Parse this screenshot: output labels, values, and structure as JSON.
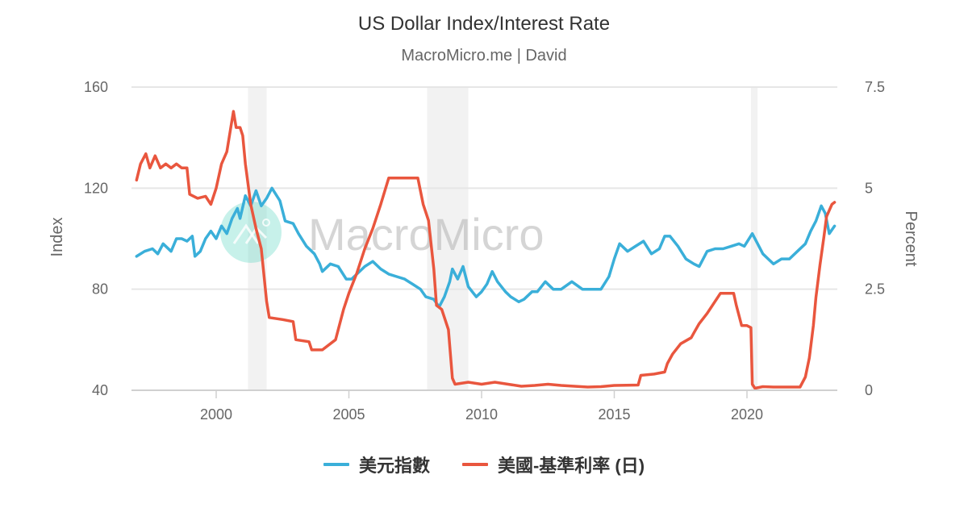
{
  "header": {
    "title": "US Dollar Index/Interest Rate",
    "subtitle": "MacroMicro.me | David"
  },
  "watermark": {
    "text": "MacroMicro",
    "logo_color": "#5fd8c4"
  },
  "legend": {
    "items": [
      {
        "label": "美元指數",
        "color": "#3aafd9"
      },
      {
        "label": "美國-基準利率 (日)",
        "color": "#e9563e"
      }
    ]
  },
  "chart_data": {
    "type": "line",
    "title": "US Dollar Index/Interest Rate",
    "subtitle": "MacroMicro.me | David",
    "xlabel": "",
    "x_ticks": [
      "2000",
      "2005",
      "2010",
      "2015",
      "2020"
    ],
    "xlim": [
      1996.8,
      2023.3
    ],
    "left_axis": {
      "label": "Index",
      "ticks": [
        "160",
        "120",
        "80",
        "40"
      ],
      "ylim": [
        40,
        160
      ]
    },
    "right_axis": {
      "label": "Percent",
      "ticks": [
        "7.5",
        "5",
        "2.5",
        "0"
      ],
      "ylim": [
        0,
        7.5
      ]
    },
    "grid": true,
    "legend_position": "bottom",
    "recession_bands": [
      [
        2001.2,
        2001.9
      ],
      [
        2007.95,
        2009.5
      ],
      [
        2020.15,
        2020.4
      ]
    ],
    "series": [
      {
        "name": "美元指數",
        "axis": "left",
        "color": "#3aafd9",
        "points": [
          [
            1997.0,
            93
          ],
          [
            1997.3,
            95
          ],
          [
            1997.6,
            96
          ],
          [
            1997.8,
            94
          ],
          [
            1998.0,
            98
          ],
          [
            1998.3,
            95
          ],
          [
            1998.5,
            100
          ],
          [
            1998.7,
            100
          ],
          [
            1998.9,
            99
          ],
          [
            1999.1,
            101
          ],
          [
            1999.2,
            93
          ],
          [
            1999.4,
            95
          ],
          [
            1999.6,
            100
          ],
          [
            1999.8,
            103
          ],
          [
            2000.0,
            100
          ],
          [
            2000.2,
            105
          ],
          [
            2000.4,
            102
          ],
          [
            2000.6,
            108
          ],
          [
            2000.8,
            112
          ],
          [
            2000.9,
            108
          ],
          [
            2001.1,
            117
          ],
          [
            2001.3,
            113
          ],
          [
            2001.5,
            119
          ],
          [
            2001.7,
            113
          ],
          [
            2001.9,
            116
          ],
          [
            2002.1,
            120
          ],
          [
            2002.4,
            115
          ],
          [
            2002.6,
            107
          ],
          [
            2002.9,
            106
          ],
          [
            2003.1,
            102
          ],
          [
            2003.4,
            97
          ],
          [
            2003.7,
            94
          ],
          [
            2003.9,
            90
          ],
          [
            2004.0,
            87
          ],
          [
            2004.3,
            90
          ],
          [
            2004.6,
            89
          ],
          [
            2004.9,
            84
          ],
          [
            2005.1,
            84
          ],
          [
            2005.3,
            86
          ],
          [
            2005.6,
            89
          ],
          [
            2005.9,
            91
          ],
          [
            2006.2,
            88
          ],
          [
            2006.5,
            86
          ],
          [
            2006.8,
            85
          ],
          [
            2007.1,
            84
          ],
          [
            2007.4,
            82
          ],
          [
            2007.7,
            80
          ],
          [
            2007.9,
            77
          ],
          [
            2008.2,
            76
          ],
          [
            2008.4,
            73
          ],
          [
            2008.6,
            77
          ],
          [
            2008.8,
            83
          ],
          [
            2008.9,
            88
          ],
          [
            2009.1,
            84
          ],
          [
            2009.3,
            89
          ],
          [
            2009.5,
            81
          ],
          [
            2009.8,
            77
          ],
          [
            2010.0,
            79
          ],
          [
            2010.2,
            82
          ],
          [
            2010.4,
            87
          ],
          [
            2010.6,
            83
          ],
          [
            2010.9,
            79
          ],
          [
            2011.1,
            77
          ],
          [
            2011.4,
            75
          ],
          [
            2011.6,
            76
          ],
          [
            2011.9,
            79
          ],
          [
            2012.1,
            79
          ],
          [
            2012.4,
            83
          ],
          [
            2012.7,
            80
          ],
          [
            2013.0,
            80
          ],
          [
            2013.4,
            83
          ],
          [
            2013.8,
            80
          ],
          [
            2014.2,
            80
          ],
          [
            2014.5,
            80
          ],
          [
            2014.8,
            85
          ],
          [
            2015.0,
            92
          ],
          [
            2015.2,
            98
          ],
          [
            2015.5,
            95
          ],
          [
            2015.8,
            97
          ],
          [
            2016.1,
            99
          ],
          [
            2016.4,
            94
          ],
          [
            2016.7,
            96
          ],
          [
            2016.9,
            101
          ],
          [
            2017.1,
            101
          ],
          [
            2017.4,
            97
          ],
          [
            2017.7,
            92
          ],
          [
            2018.0,
            90
          ],
          [
            2018.2,
            89
          ],
          [
            2018.5,
            95
          ],
          [
            2018.8,
            96
          ],
          [
            2019.1,
            96
          ],
          [
            2019.4,
            97
          ],
          [
            2019.7,
            98
          ],
          [
            2019.9,
            97
          ],
          [
            2020.2,
            102
          ],
          [
            2020.4,
            98
          ],
          [
            2020.6,
            94
          ],
          [
            2020.8,
            92
          ],
          [
            2021.0,
            90
          ],
          [
            2021.3,
            92
          ],
          [
            2021.6,
            92
          ],
          [
            2021.9,
            95
          ],
          [
            2022.2,
            98
          ],
          [
            2022.4,
            103
          ],
          [
            2022.6,
            107
          ],
          [
            2022.8,
            113
          ],
          [
            2022.95,
            110
          ],
          [
            2023.1,
            102
          ],
          [
            2023.3,
            105
          ]
        ]
      },
      {
        "name": "美國-基準利率 (日)",
        "axis": "right",
        "color": "#e9563e",
        "points": [
          [
            1997.0,
            5.2
          ],
          [
            1997.15,
            5.6
          ],
          [
            1997.35,
            5.85
          ],
          [
            1997.5,
            5.5
          ],
          [
            1997.7,
            5.8
          ],
          [
            1997.9,
            5.5
          ],
          [
            1998.1,
            5.6
          ],
          [
            1998.3,
            5.5
          ],
          [
            1998.5,
            5.6
          ],
          [
            1998.7,
            5.5
          ],
          [
            1998.9,
            5.5
          ],
          [
            1999.0,
            4.85
          ],
          [
            1999.3,
            4.75
          ],
          [
            1999.6,
            4.8
          ],
          [
            1999.8,
            4.6
          ],
          [
            2000.0,
            5.0
          ],
          [
            2000.2,
            5.6
          ],
          [
            2000.4,
            5.9
          ],
          [
            2000.55,
            6.5
          ],
          [
            2000.65,
            6.9
          ],
          [
            2000.75,
            6.5
          ],
          [
            2000.9,
            6.5
          ],
          [
            2001.0,
            6.3
          ],
          [
            2001.1,
            5.6
          ],
          [
            2001.3,
            4.6
          ],
          [
            2001.5,
            4.0
          ],
          [
            2001.7,
            3.5
          ],
          [
            2001.9,
            2.2
          ],
          [
            2002.0,
            1.8
          ],
          [
            2002.5,
            1.75
          ],
          [
            2002.9,
            1.7
          ],
          [
            2003.0,
            1.25
          ],
          [
            2003.5,
            1.2
          ],
          [
            2003.6,
            1.0
          ],
          [
            2004.0,
            1.0
          ],
          [
            2004.5,
            1.25
          ],
          [
            2004.8,
            2.0
          ],
          [
            2005.0,
            2.4
          ],
          [
            2005.3,
            2.9
          ],
          [
            2005.6,
            3.5
          ],
          [
            2005.9,
            4.0
          ],
          [
            2006.2,
            4.6
          ],
          [
            2006.5,
            5.25
          ],
          [
            2007.0,
            5.25
          ],
          [
            2007.6,
            5.25
          ],
          [
            2007.8,
            4.6
          ],
          [
            2008.0,
            4.2
          ],
          [
            2008.2,
            3.0
          ],
          [
            2008.3,
            2.1
          ],
          [
            2008.5,
            2.0
          ],
          [
            2008.75,
            1.5
          ],
          [
            2008.9,
            0.3
          ],
          [
            2009.0,
            0.15
          ],
          [
            2009.5,
            0.2
          ],
          [
            2010.0,
            0.15
          ],
          [
            2010.5,
            0.2
          ],
          [
            2011.0,
            0.15
          ],
          [
            2011.5,
            0.1
          ],
          [
            2012.0,
            0.12
          ],
          [
            2012.5,
            0.15
          ],
          [
            2013.0,
            0.12
          ],
          [
            2013.5,
            0.1
          ],
          [
            2014.0,
            0.08
          ],
          [
            2014.5,
            0.09
          ],
          [
            2015.0,
            0.12
          ],
          [
            2015.9,
            0.13
          ],
          [
            2016.0,
            0.37
          ],
          [
            2016.5,
            0.4
          ],
          [
            2016.9,
            0.45
          ],
          [
            2017.0,
            0.66
          ],
          [
            2017.2,
            0.9
          ],
          [
            2017.5,
            1.15
          ],
          [
            2017.9,
            1.3
          ],
          [
            2018.0,
            1.42
          ],
          [
            2018.2,
            1.65
          ],
          [
            2018.5,
            1.9
          ],
          [
            2018.8,
            2.2
          ],
          [
            2019.0,
            2.4
          ],
          [
            2019.5,
            2.4
          ],
          [
            2019.6,
            2.1
          ],
          [
            2019.8,
            1.6
          ],
          [
            2020.0,
            1.6
          ],
          [
            2020.15,
            1.55
          ],
          [
            2020.2,
            0.15
          ],
          [
            2020.3,
            0.05
          ],
          [
            2020.6,
            0.09
          ],
          [
            2021.0,
            0.08
          ],
          [
            2021.5,
            0.08
          ],
          [
            2022.0,
            0.08
          ],
          [
            2022.2,
            0.33
          ],
          [
            2022.35,
            0.8
          ],
          [
            2022.5,
            1.6
          ],
          [
            2022.6,
            2.3
          ],
          [
            2022.75,
            3.1
          ],
          [
            2022.9,
            3.8
          ],
          [
            2023.0,
            4.3
          ],
          [
            2023.2,
            4.6
          ],
          [
            2023.3,
            4.65
          ]
        ]
      }
    ]
  }
}
